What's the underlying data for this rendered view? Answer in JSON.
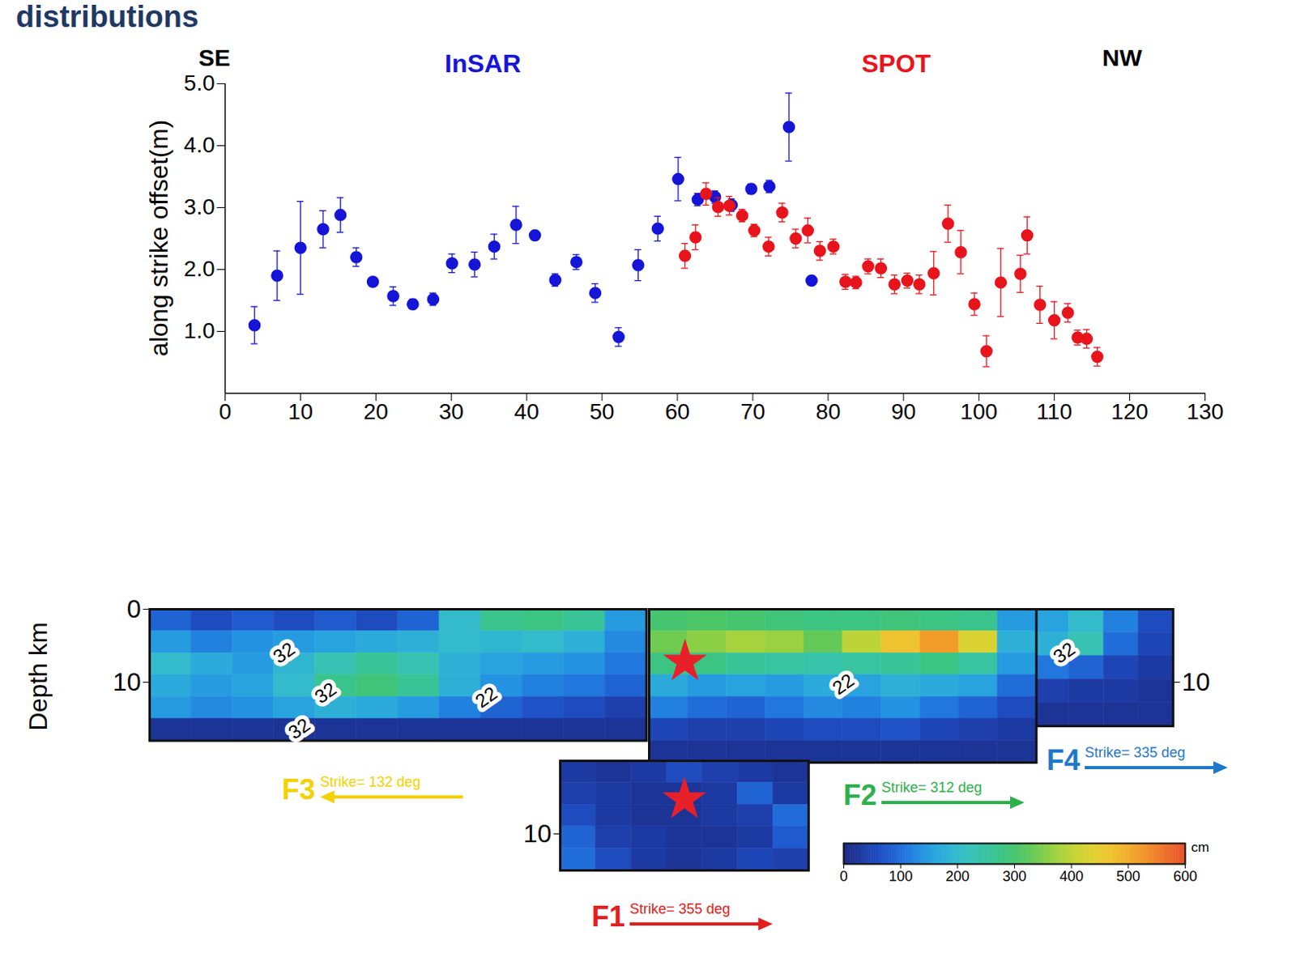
{
  "chart_data": [
    {
      "type": "scatter",
      "title": "distributions",
      "y_label": "along strike offset(m)",
      "annotations": [
        "SE",
        "NW"
      ],
      "xlim": [
        0,
        130
      ],
      "xticks": [
        0,
        10,
        20,
        30,
        40,
        50,
        60,
        70,
        80,
        90,
        100,
        110,
        120,
        130
      ],
      "ylim": [
        0,
        5
      ],
      "yticks": [
        1,
        2,
        3,
        4,
        5
      ],
      "series": [
        {
          "name": "InSAR",
          "color": "#1515d8",
          "marker": "circle",
          "x": [
            3.9,
            6.9,
            10.0,
            13.0,
            15.3,
            17.4,
            19.6,
            22.3,
            24.9,
            27.6,
            30.1,
            33.1,
            35.7,
            38.6,
            41.1,
            43.8,
            46.6,
            49.1,
            52.2,
            54.8,
            57.4,
            60.1,
            62.7,
            65.0,
            67.2,
            69.8,
            72.2,
            74.8,
            77.8
          ],
          "values": [
            1.1,
            1.9,
            2.35,
            2.65,
            2.88,
            2.2,
            1.8,
            1.57,
            1.44,
            1.52,
            2.1,
            2.08,
            2.37,
            2.72,
            2.55,
            1.83,
            2.12,
            1.62,
            0.91,
            2.07,
            2.66,
            3.46,
            3.13,
            3.17,
            3.04,
            3.3,
            3.34,
            4.3,
            1.82
          ],
          "errors": [
            0.3,
            0.4,
            0.75,
            0.3,
            0.28,
            0.15,
            0.07,
            0.15,
            0.08,
            0.1,
            0.15,
            0.2,
            0.2,
            0.3,
            0.05,
            0.1,
            0.12,
            0.15,
            0.15,
            0.25,
            0.2,
            0.35,
            0.1,
            0.1,
            0.1,
            0.08,
            0.1,
            0.55,
            0.05
          ]
        },
        {
          "name": "SPOT",
          "color": "#e8141c",
          "marker": "circle",
          "x": [
            61.0,
            62.4,
            63.8,
            65.4,
            66.9,
            68.6,
            70.2,
            72.1,
            73.9,
            75.7,
            77.3,
            78.9,
            80.7,
            82.3,
            83.7,
            85.3,
            87.0,
            88.8,
            90.5,
            92.1,
            94.0,
            95.9,
            97.6,
            99.4,
            101.0,
            102.9,
            105.5,
            106.4,
            108.1,
            110.0,
            111.8,
            113.1,
            114.3,
            115.7
          ],
          "values": [
            2.22,
            2.52,
            3.22,
            3.01,
            3.03,
            2.87,
            2.63,
            2.37,
            2.92,
            2.5,
            2.63,
            2.3,
            2.37,
            1.8,
            1.79,
            2.05,
            2.02,
            1.76,
            1.82,
            1.76,
            1.94,
            2.74,
            2.28,
            1.44,
            0.68,
            1.79,
            1.93,
            2.55,
            1.43,
            1.18,
            1.3,
            0.9,
            0.88,
            0.59
          ],
          "errors": [
            0.2,
            0.2,
            0.18,
            0.15,
            0.15,
            0.1,
            0.1,
            0.15,
            0.15,
            0.15,
            0.2,
            0.15,
            0.12,
            0.12,
            0.1,
            0.12,
            0.15,
            0.15,
            0.12,
            0.15,
            0.35,
            0.3,
            0.35,
            0.18,
            0.25,
            0.55,
            0.3,
            0.3,
            0.3,
            0.3,
            0.15,
            0.12,
            0.15,
            0.15
          ]
        }
      ]
    },
    {
      "type": "heatmap",
      "y_label": "Depth km",
      "colorbar": {
        "range": [
          0,
          600
        ],
        "ticks": [
          0,
          100,
          200,
          300,
          400,
          500,
          600
        ],
        "label": "cm",
        "colors": [
          "#1c2a80",
          "#1f4fd6",
          "#22a3ea",
          "#3ec9c0",
          "#2fc06a",
          "#a6d53a",
          "#f4d630",
          "#f39a2a",
          "#e8502a"
        ]
      },
      "panels": [
        {
          "name": "F3",
          "title": "Strike= 132 deg",
          "color": "#f2d200",
          "marker": "arrow-left",
          "xlim": [
            0,
            68
          ],
          "ylim": [
            0,
            18
          ],
          "yticks": [
            0,
            10
          ],
          "tick_labels": "y",
          "cells": [
            [
              90,
              60,
              80,
              60,
              80,
              60,
              90,
              200,
              270,
              280,
              260,
              150
            ],
            [
              150,
              120,
              140,
              150,
              160,
              170,
              180,
              200,
              190,
              200,
              180,
              130
            ],
            [
              200,
              170,
              150,
              190,
              230,
              260,
              230,
              180,
              160,
              150,
              140,
              110
            ],
            [
              170,
              150,
              160,
              200,
              270,
              290,
              260,
              180,
              140,
              120,
              110,
              90
            ],
            [
              150,
              130,
              140,
              160,
              180,
              170,
              150,
              120,
              90,
              70,
              60,
              40
            ],
            [
              20,
              20,
              20,
              20,
              20,
              20,
              20,
              20,
              20,
              20,
              20,
              20
            ]
          ],
          "contour_labels": [
            {
              "label": "32",
              "x": 18.4,
              "depth": 6.0
            },
            {
              "label": "32",
              "x": 24.1,
              "depth": 11.5
            },
            {
              "label": "32",
              "x": 20.5,
              "depth": 16.4
            },
            {
              "label": "22",
              "x": 46.1,
              "depth": 12.1
            }
          ]
        },
        {
          "name": "F4",
          "title": "Strike= 335 deg",
          "color": "#1f78c8",
          "marker": "arrow-right",
          "xlim": [
            0,
            19
          ],
          "y2lim": [
            0,
            16
          ],
          "y2ticks": [
            10
          ],
          "tick_labels": "y",
          "cells": [
            [
              160,
              200,
              120,
              60
            ],
            [
              180,
              230,
              100,
              50
            ],
            [
              110,
              90,
              50,
              30
            ],
            [
              40,
              30,
              30,
              20
            ],
            [
              20,
              20,
              20,
              20
            ]
          ],
          "contour_labels": [
            {
              "label": "32",
              "x": 4.1,
              "depth": 6.0
            }
          ]
        },
        {
          "name": "F2",
          "title": "Strike= 312 deg",
          "color": "#2db04b",
          "marker": "arrow-right",
          "xlim": [
            0,
            53
          ],
          "ylim": [
            0,
            21
          ],
          "yticks": [],
          "tick_labels": false,
          "cells": [
            [
              300,
              310,
              300,
              290,
              280,
              280,
              290,
              280,
              270,
              150
            ],
            [
              340,
              360,
              380,
              370,
              330,
              400,
              470,
              520,
              430,
              180
            ],
            [
              280,
              280,
              260,
              250,
              240,
              250,
              260,
              280,
              250,
              150
            ],
            [
              170,
              150,
              160,
              150,
              170,
              160,
              180,
              170,
              160,
              100
            ],
            [
              120,
              100,
              90,
              110,
              130,
              120,
              140,
              110,
              90,
              60
            ],
            [
              50,
              40,
              40,
              50,
              60,
              60,
              70,
              50,
              40,
              30
            ],
            [
              20,
              20,
              20,
              20,
              20,
              20,
              20,
              20,
              20,
              20
            ]
          ],
          "contour_labels": [
            {
              "label": "22",
              "x": 26.6,
              "depth": 10.3
            }
          ],
          "hypocenter": {
            "x": 4.9,
            "depth": 7.2
          }
        },
        {
          "name": "F1",
          "title": "Strike= 355 deg",
          "color": "#e02020",
          "marker": "arrow-right",
          "xlim": [
            0,
            34
          ],
          "ylim": [
            0,
            15
          ],
          "yticks": [
            10
          ],
          "tick_labels": "y",
          "cells": [
            [
              30,
              20,
              30,
              60,
              40,
              30,
              20
            ],
            [
              40,
              30,
              20,
              20,
              30,
              90,
              30
            ],
            [
              60,
              30,
              20,
              20,
              30,
              40,
              100
            ],
            [
              90,
              40,
              30,
              20,
              20,
              30,
              80
            ],
            [
              100,
              60,
              30,
              20,
              30,
              50,
              40
            ]
          ],
          "hypocenter": {
            "x": 17.0,
            "depth": 5.3
          }
        }
      ]
    }
  ]
}
